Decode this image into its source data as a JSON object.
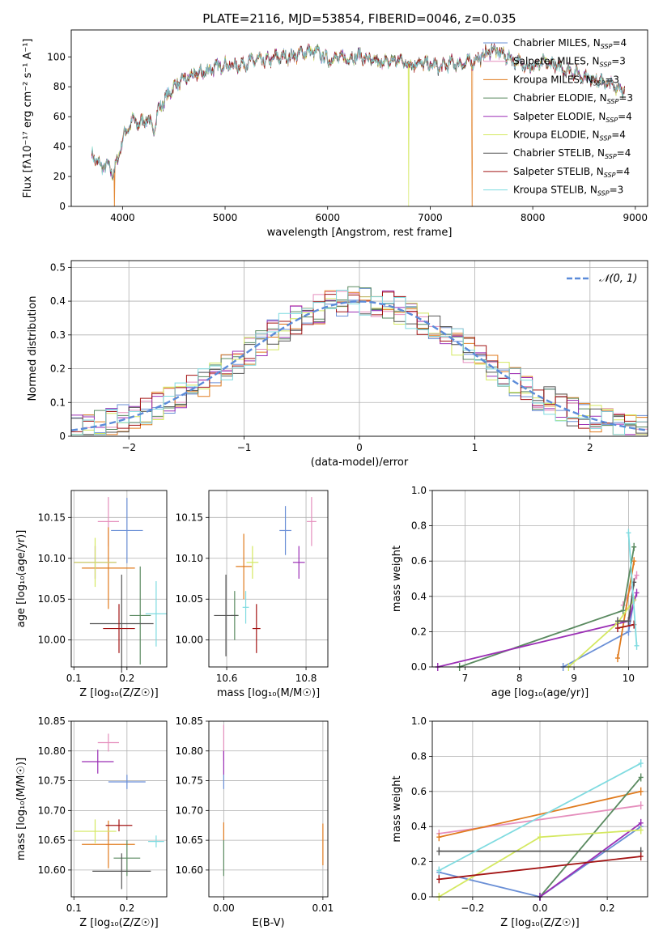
{
  "colors": {
    "Chabrier MILES": "#6a8fd6",
    "Salpeter MILES": "#e58fbd",
    "Kroupa MILES": "#e07b1e",
    "Chabrier ELODIE": "#5a8a60",
    "Salpeter ELODIE": "#9b2fb5",
    "Kroupa ELODIE": "#d4e860",
    "Chabrier STELIB": "#555555",
    "Salpeter STELIB": "#a31414",
    "Kroupa STELIB": "#7fdbe0",
    "normal_curve": "#5b8bd9"
  },
  "chart_data": [
    {
      "id": "spectrum",
      "type": "line",
      "title": "PLATE=2116, MJD=53854, FIBERID=0046, z=0.035",
      "xlabel": "wavelength [Angstrom, rest frame]",
      "ylabel": "Flux [fλ10⁻¹⁷ erg cm⁻² s⁻¹ A⁻¹]",
      "xlim": [
        3500,
        9120
      ],
      "ylim": [
        0,
        118
      ],
      "xticks": [
        4000,
        5000,
        6000,
        7000,
        8000,
        9000
      ],
      "yticks": [
        0,
        20,
        40,
        60,
        80,
        100
      ],
      "legend": [
        {
          "label": "Chabrier MILES, N",
          "sub": "SSP",
          "eq": "=4"
        },
        {
          "label": "Salpeter MILES, N",
          "sub": "SSP",
          "eq": "=3"
        },
        {
          "label": "Kroupa MILES, N",
          "sub": "SSP",
          "eq": "=3"
        },
        {
          "label": "Chabrier ELODIE, N",
          "sub": "SSP",
          "eq": "=3"
        },
        {
          "label": "Salpeter ELODIE, N",
          "sub": "SSP",
          "eq": "=4"
        },
        {
          "label": "Kroupa ELODIE, N",
          "sub": "SSP",
          "eq": "=4"
        },
        {
          "label": "Chabrier STELIB, N",
          "sub": "SSP",
          "eq": "=4"
        },
        {
          "label": "Salpeter STELIB, N",
          "sub": "SSP",
          "eq": "=4"
        },
        {
          "label": "Kroupa STELIB, N",
          "sub": "SSP",
          "eq": "=3"
        }
      ],
      "legend_position": "top-right",
      "continuum": {
        "x": [
          3700,
          3750,
          3800,
          3850,
          3900,
          3950,
          4000,
          4050,
          4100,
          4150,
          4200,
          4250,
          4300,
          4350,
          4400,
          4450,
          4500,
          4600,
          4700,
          4800,
          4900,
          5000,
          5100,
          5200,
          5300,
          5400,
          5500,
          5600,
          5700,
          5800,
          5900,
          6000,
          6100,
          6200,
          6300,
          6400,
          6500,
          6600,
          6700,
          6800,
          6900,
          7000,
          7100,
          7200,
          7300,
          7400,
          7500,
          7600,
          7700,
          7800,
          7900,
          8000,
          8100,
          8200,
          8300,
          8400,
          8500,
          8600,
          8700,
          8800,
          8900
        ],
        "y": [
          35,
          30,
          26,
          28,
          22,
          30,
          45,
          52,
          58,
          55,
          57,
          59,
          50,
          65,
          70,
          75,
          80,
          85,
          88,
          90,
          93,
          95,
          94,
          96,
          98,
          97,
          100,
          100,
          101,
          104,
          103,
          98,
          100,
          99,
          101,
          98,
          96,
          97,
          98,
          95,
          96,
          95,
          93,
          96,
          95,
          97,
          100,
          105,
          102,
          98,
          95,
          93,
          96,
          95,
          92,
          90,
          87,
          85,
          83,
          80,
          78
        ]
      },
      "dropouts": [
        {
          "series": "Kroupa MILES",
          "x": 3920
        },
        {
          "series": "Kroupa ELODIE",
          "x": 6790
        },
        {
          "series": "Kroupa MILES",
          "x": 7410
        }
      ]
    },
    {
      "id": "residuals",
      "type": "histogram",
      "xlabel": "(data-model)/error",
      "ylabel": "Normed distribution",
      "xlim": [
        -2.5,
        2.5
      ],
      "ylim": [
        0,
        0.52
      ],
      "xticks": [
        -2,
        -1,
        0,
        1,
        2
      ],
      "yticks": [
        0.0,
        0.1,
        0.2,
        0.3,
        0.4,
        0.5
      ],
      "grid": true,
      "legend": [
        {
          "label": "𝒩(0, 1)"
        }
      ],
      "legend_position": "top-right",
      "bin_width": 0.1
    },
    {
      "id": "age_vs_Z",
      "type": "scatter",
      "xlabel": "Z [log₁₀(Z/Z☉)]",
      "ylabel": "age  [log₁₀(age/yr)]",
      "xlim": [
        0.095,
        0.275
      ],
      "ylim": [
        9.967,
        10.183
      ],
      "xticks": [
        0.1,
        0.2
      ],
      "yticks": [
        10.0,
        10.05,
        10.1,
        10.15
      ],
      "grid": true,
      "points": [
        {
          "series": "Chabrier MILES",
          "x": 0.2,
          "y": 10.134,
          "xerr": 0.03,
          "yerr": 0.04
        },
        {
          "series": "Salpeter MILES",
          "x": 0.165,
          "y": 10.145,
          "xerr": 0.02,
          "yerr": 0.03
        },
        {
          "series": "Kroupa MILES",
          "x": 0.165,
          "y": 10.088,
          "xerr": 0.05,
          "yerr": 0.05
        },
        {
          "series": "Chabrier ELODIE",
          "x": 0.225,
          "y": 10.03,
          "xerr": 0.02,
          "yerr": 0.06
        },
        {
          "series": "Salpeter ELODIE",
          "x": 0.14,
          "y": 10.095,
          "xerr": 0.04,
          "yerr": 0.02
        },
        {
          "series": "Kroupa ELODIE",
          "x": 0.14,
          "y": 10.095,
          "xerr": 0.04,
          "yerr": 0.03
        },
        {
          "series": "Chabrier STELIB",
          "x": 0.19,
          "y": 10.02,
          "xerr": 0.06,
          "yerr": 0.06
        },
        {
          "series": "Salpeter STELIB",
          "x": 0.185,
          "y": 10.014,
          "xerr": 0.03,
          "yerr": 0.03
        },
        {
          "series": "Kroupa STELIB",
          "x": 0.255,
          "y": 10.032,
          "xerr": 0.02,
          "yerr": 0.04
        }
      ]
    },
    {
      "id": "age_vs_mass",
      "type": "scatter",
      "xlabel": "mass [log₁₀(M/M☉)]",
      "ylabel": "",
      "xlim": [
        10.555,
        10.855
      ],
      "ylim": [
        9.967,
        10.183
      ],
      "xticks": [
        10.6,
        10.8
      ],
      "yticks": [
        10.0,
        10.05,
        10.1,
        10.15
      ],
      "grid": true,
      "points": [
        {
          "series": "Chabrier MILES",
          "x": 10.748,
          "y": 10.134,
          "xerr": 0.015,
          "yerr": 0.03
        },
        {
          "series": "Salpeter MILES",
          "x": 10.814,
          "y": 10.145,
          "xerr": 0.012,
          "yerr": 0.03
        },
        {
          "series": "Kroupa MILES",
          "x": 10.643,
          "y": 10.09,
          "xerr": 0.02,
          "yerr": 0.04
        },
        {
          "series": "Chabrier ELODIE",
          "x": 10.62,
          "y": 10.03,
          "xerr": 0.01,
          "yerr": 0.03
        },
        {
          "series": "Salpeter ELODIE",
          "x": 10.782,
          "y": 10.095,
          "xerr": 0.015,
          "yerr": 0.02
        },
        {
          "series": "Kroupa ELODIE",
          "x": 10.665,
          "y": 10.095,
          "xerr": 0.015,
          "yerr": 0.02
        },
        {
          "series": "Chabrier STELIB",
          "x": 10.598,
          "y": 10.03,
          "xerr": 0.03,
          "yerr": 0.05
        },
        {
          "series": "Salpeter STELIB",
          "x": 10.675,
          "y": 10.014,
          "xerr": 0.01,
          "yerr": 0.03
        },
        {
          "series": "Kroupa STELIB",
          "x": 10.648,
          "y": 10.04,
          "xerr": 0.008,
          "yerr": 0.02
        }
      ]
    },
    {
      "id": "weight_vs_age",
      "type": "line",
      "xlabel": "age  [log₁₀(age/yr)]",
      "ylabel": "mass weight",
      "xlim": [
        6.4,
        10.35
      ],
      "ylim": [
        0,
        1.0
      ],
      "xticks": [
        7,
        8,
        9,
        10
      ],
      "yticks": [
        0.0,
        0.2,
        0.4,
        0.6,
        0.8,
        1.0
      ],
      "grid": true,
      "series": [
        {
          "name": "Chabrier MILES",
          "x": [
            8.8,
            10.0,
            10.1
          ],
          "y": [
            0.0,
            0.2,
            0.38
          ]
        },
        {
          "name": "Salpeter MILES",
          "x": [
            9.9,
            10.15
          ],
          "y": [
            0.35,
            0.52
          ]
        },
        {
          "name": "Kroupa MILES",
          "x": [
            9.8,
            10.1
          ],
          "y": [
            0.05,
            0.6
          ]
        },
        {
          "name": "Chabrier ELODIE",
          "x": [
            6.9,
            9.9,
            10.1
          ],
          "y": [
            0.0,
            0.32,
            0.68
          ]
        },
        {
          "name": "Salpeter ELODIE",
          "x": [
            6.5,
            10.0,
            10.15
          ],
          "y": [
            0.0,
            0.26,
            0.42
          ]
        },
        {
          "name": "Kroupa ELODIE",
          "x": [
            8.9,
            9.8,
            10.1
          ],
          "y": [
            0.0,
            0.25,
            0.38
          ]
        },
        {
          "name": "Chabrier STELIB",
          "x": [
            9.8,
            10.0,
            10.1
          ],
          "y": [
            0.26,
            0.26,
            0.48
          ]
        },
        {
          "name": "Salpeter STELIB",
          "x": [
            9.8,
            10.1
          ],
          "y": [
            0.22,
            0.24
          ]
        },
        {
          "name": "Kroupa STELIB",
          "x": [
            10.0,
            10.15
          ],
          "y": [
            0.76,
            0.12
          ]
        }
      ]
    },
    {
      "id": "mass_vs_Z",
      "type": "scatter",
      "xlabel": "Z [log₁₀(Z/Z☉)]",
      "ylabel": "mass [log₁₀(M/M☉)]",
      "xlim": [
        0.095,
        0.275
      ],
      "ylim": [
        10.555,
        10.85
      ],
      "xticks": [
        0.1,
        0.2
      ],
      "yticks": [
        10.6,
        10.65,
        10.7,
        10.75,
        10.8,
        10.85
      ],
      "grid": true,
      "points": [
        {
          "series": "Chabrier MILES",
          "x": 0.2,
          "y": 10.748,
          "xerr": 0.035,
          "yerr": 0.012
        },
        {
          "series": "Salpeter MILES",
          "x": 0.165,
          "y": 10.814,
          "xerr": 0.02,
          "yerr": 0.015
        },
        {
          "series": "Kroupa MILES",
          "x": 0.165,
          "y": 10.643,
          "xerr": 0.05,
          "yerr": 0.04
        },
        {
          "series": "Chabrier ELODIE",
          "x": 0.2,
          "y": 10.62,
          "xerr": 0.025,
          "yerr": 0.03
        },
        {
          "series": "Salpeter ELODIE",
          "x": 0.145,
          "y": 10.782,
          "xerr": 0.03,
          "yerr": 0.02
        },
        {
          "series": "Kroupa ELODIE",
          "x": 0.14,
          "y": 10.665,
          "xerr": 0.04,
          "yerr": 0.02
        },
        {
          "series": "Chabrier STELIB",
          "x": 0.19,
          "y": 10.598,
          "xerr": 0.055,
          "yerr": 0.03
        },
        {
          "series": "Salpeter STELIB",
          "x": 0.185,
          "y": 10.675,
          "xerr": 0.025,
          "yerr": 0.01
        },
        {
          "series": "Kroupa STELIB",
          "x": 0.255,
          "y": 10.648,
          "xerr": 0.015,
          "yerr": 0.01
        }
      ]
    },
    {
      "id": "mass_vs_ebv",
      "type": "scatter",
      "xlabel": "E(B-V)",
      "ylabel": "",
      "xlim": [
        -0.0015,
        0.0105
      ],
      "ylim": [
        10.555,
        10.85
      ],
      "xticks": [
        0.0,
        0.01
      ],
      "yticks": [
        10.6,
        10.65,
        10.7,
        10.75,
        10.8,
        10.85
      ],
      "grid": true,
      "points": [
        {
          "series": "Salpeter MILES",
          "x": 0.0,
          "y": 10.814,
          "xerr": 0,
          "yerr": 0.03
        },
        {
          "series": "Salpeter ELODIE",
          "x": 0.0,
          "y": 10.78,
          "xerr": 0,
          "yerr": 0.02
        },
        {
          "series": "Chabrier MILES",
          "x": 0.0,
          "y": 10.748,
          "xerr": 0,
          "yerr": 0.012
        },
        {
          "series": "Kroupa MILES",
          "x": 0.0,
          "y": 10.665,
          "xerr": 0,
          "yerr": 0.015
        },
        {
          "series": "Chabrier ELODIE",
          "x": 0.0,
          "y": 10.62,
          "xerr": 0,
          "yerr": 0.03
        },
        {
          "series": "Kroupa MILES",
          "x": 0.01,
          "y": 10.643,
          "xerr": 0,
          "yerr": 0.035
        }
      ]
    },
    {
      "id": "weight_vs_Z",
      "type": "line",
      "xlabel": "Z [log₁₀(Z/Z☉)]",
      "ylabel": "mass weight",
      "xlim": [
        -0.32,
        0.32
      ],
      "ylim": [
        0,
        1.0
      ],
      "xticks": [
        -0.2,
        0.0,
        0.2
      ],
      "yticks": [
        0.0,
        0.2,
        0.4,
        0.6,
        0.8,
        1.0
      ],
      "grid": true,
      "series": [
        {
          "name": "Chabrier MILES",
          "x": [
            -0.3,
            0.0,
            0.3
          ],
          "y": [
            0.14,
            0.0,
            0.4
          ]
        },
        {
          "name": "Salpeter MILES",
          "x": [
            -0.3,
            0.3
          ],
          "y": [
            0.36,
            0.52
          ]
        },
        {
          "name": "Kroupa MILES",
          "x": [
            -0.3,
            0.3
          ],
          "y": [
            0.34,
            0.6
          ]
        },
        {
          "name": "Chabrier ELODIE",
          "x": [
            0.0,
            0.3
          ],
          "y": [
            0.0,
            0.68
          ]
        },
        {
          "name": "Salpeter ELODIE",
          "x": [
            0.0,
            0.3
          ],
          "y": [
            0.0,
            0.42
          ]
        },
        {
          "name": "Kroupa ELODIE",
          "x": [
            -0.3,
            0.0,
            0.3
          ],
          "y": [
            0.0,
            0.34,
            0.38
          ]
        },
        {
          "name": "Chabrier STELIB",
          "x": [
            -0.3,
            0.3
          ],
          "y": [
            0.26,
            0.26
          ]
        },
        {
          "name": "Salpeter STELIB",
          "x": [
            -0.3,
            0.3
          ],
          "y": [
            0.1,
            0.23
          ]
        },
        {
          "name": "Kroupa STELIB",
          "x": [
            -0.3,
            0.3
          ],
          "y": [
            0.15,
            0.76
          ]
        }
      ]
    }
  ]
}
